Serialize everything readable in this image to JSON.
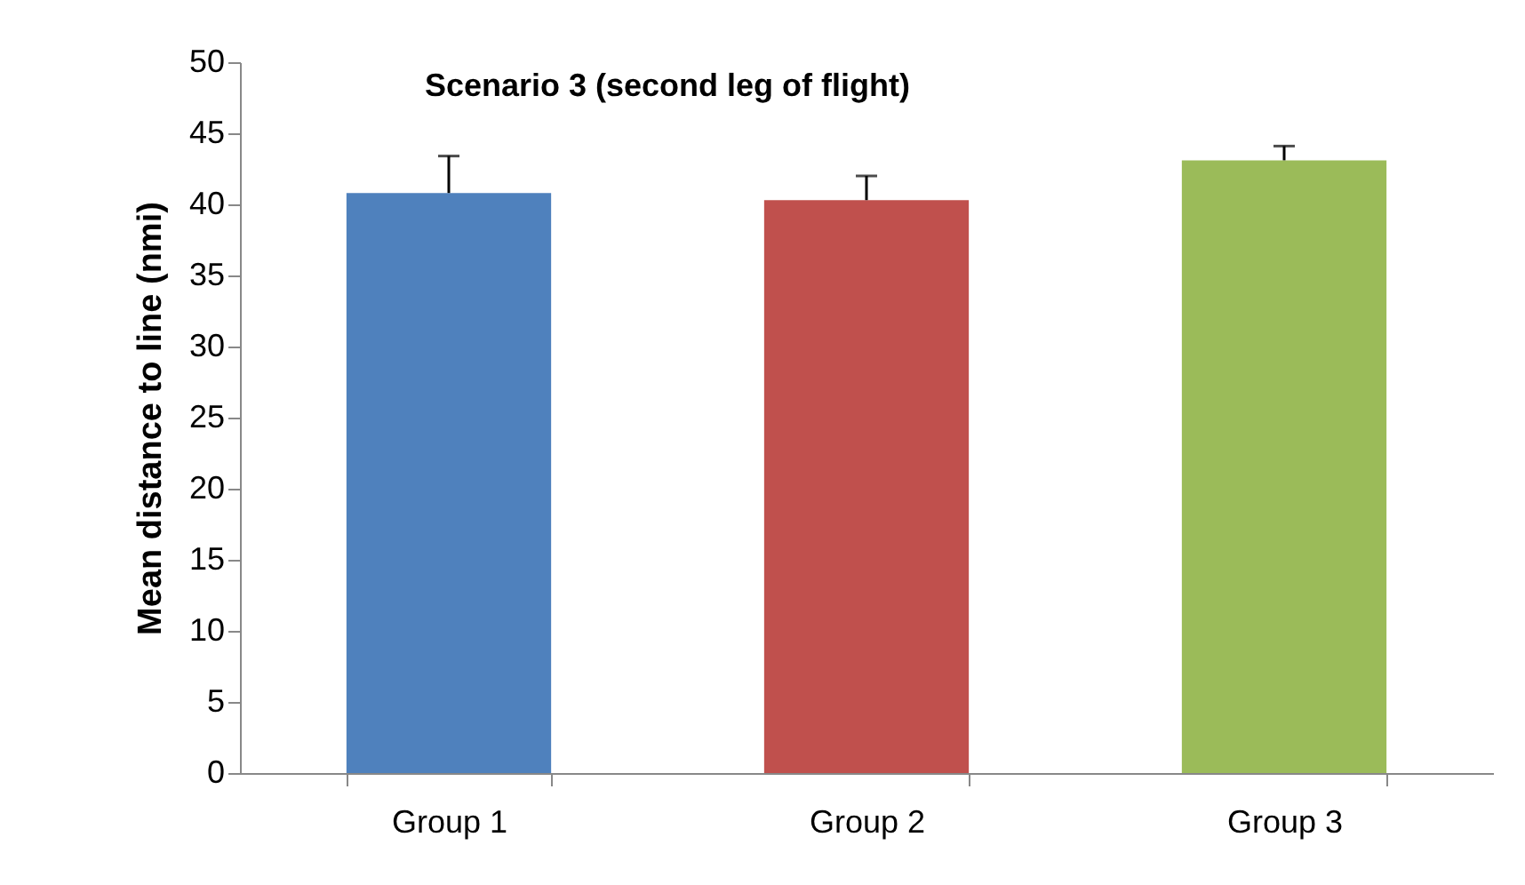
{
  "chart_data": {
    "type": "bar",
    "title": "Scenario 3 (second leg of flight)",
    "ylabel": "Mean distance to line (nmi)",
    "categories": [
      "Group 1",
      "Group 2",
      "Group 3"
    ],
    "values": [
      40.8,
      40.3,
      43.1
    ],
    "colors": [
      "#4f81bd",
      "#c0504d",
      "#9bbb59"
    ],
    "errors": [
      [
        40.8,
        43.4
      ],
      [
        40.3,
        42.0
      ],
      [
        43.1,
        44.1
      ]
    ],
    "ylim": [
      0,
      50
    ],
    "yticks": [
      0,
      5,
      10,
      15,
      20,
      25,
      30,
      35,
      40,
      45,
      50
    ],
    "grid": false,
    "legend": false
  }
}
